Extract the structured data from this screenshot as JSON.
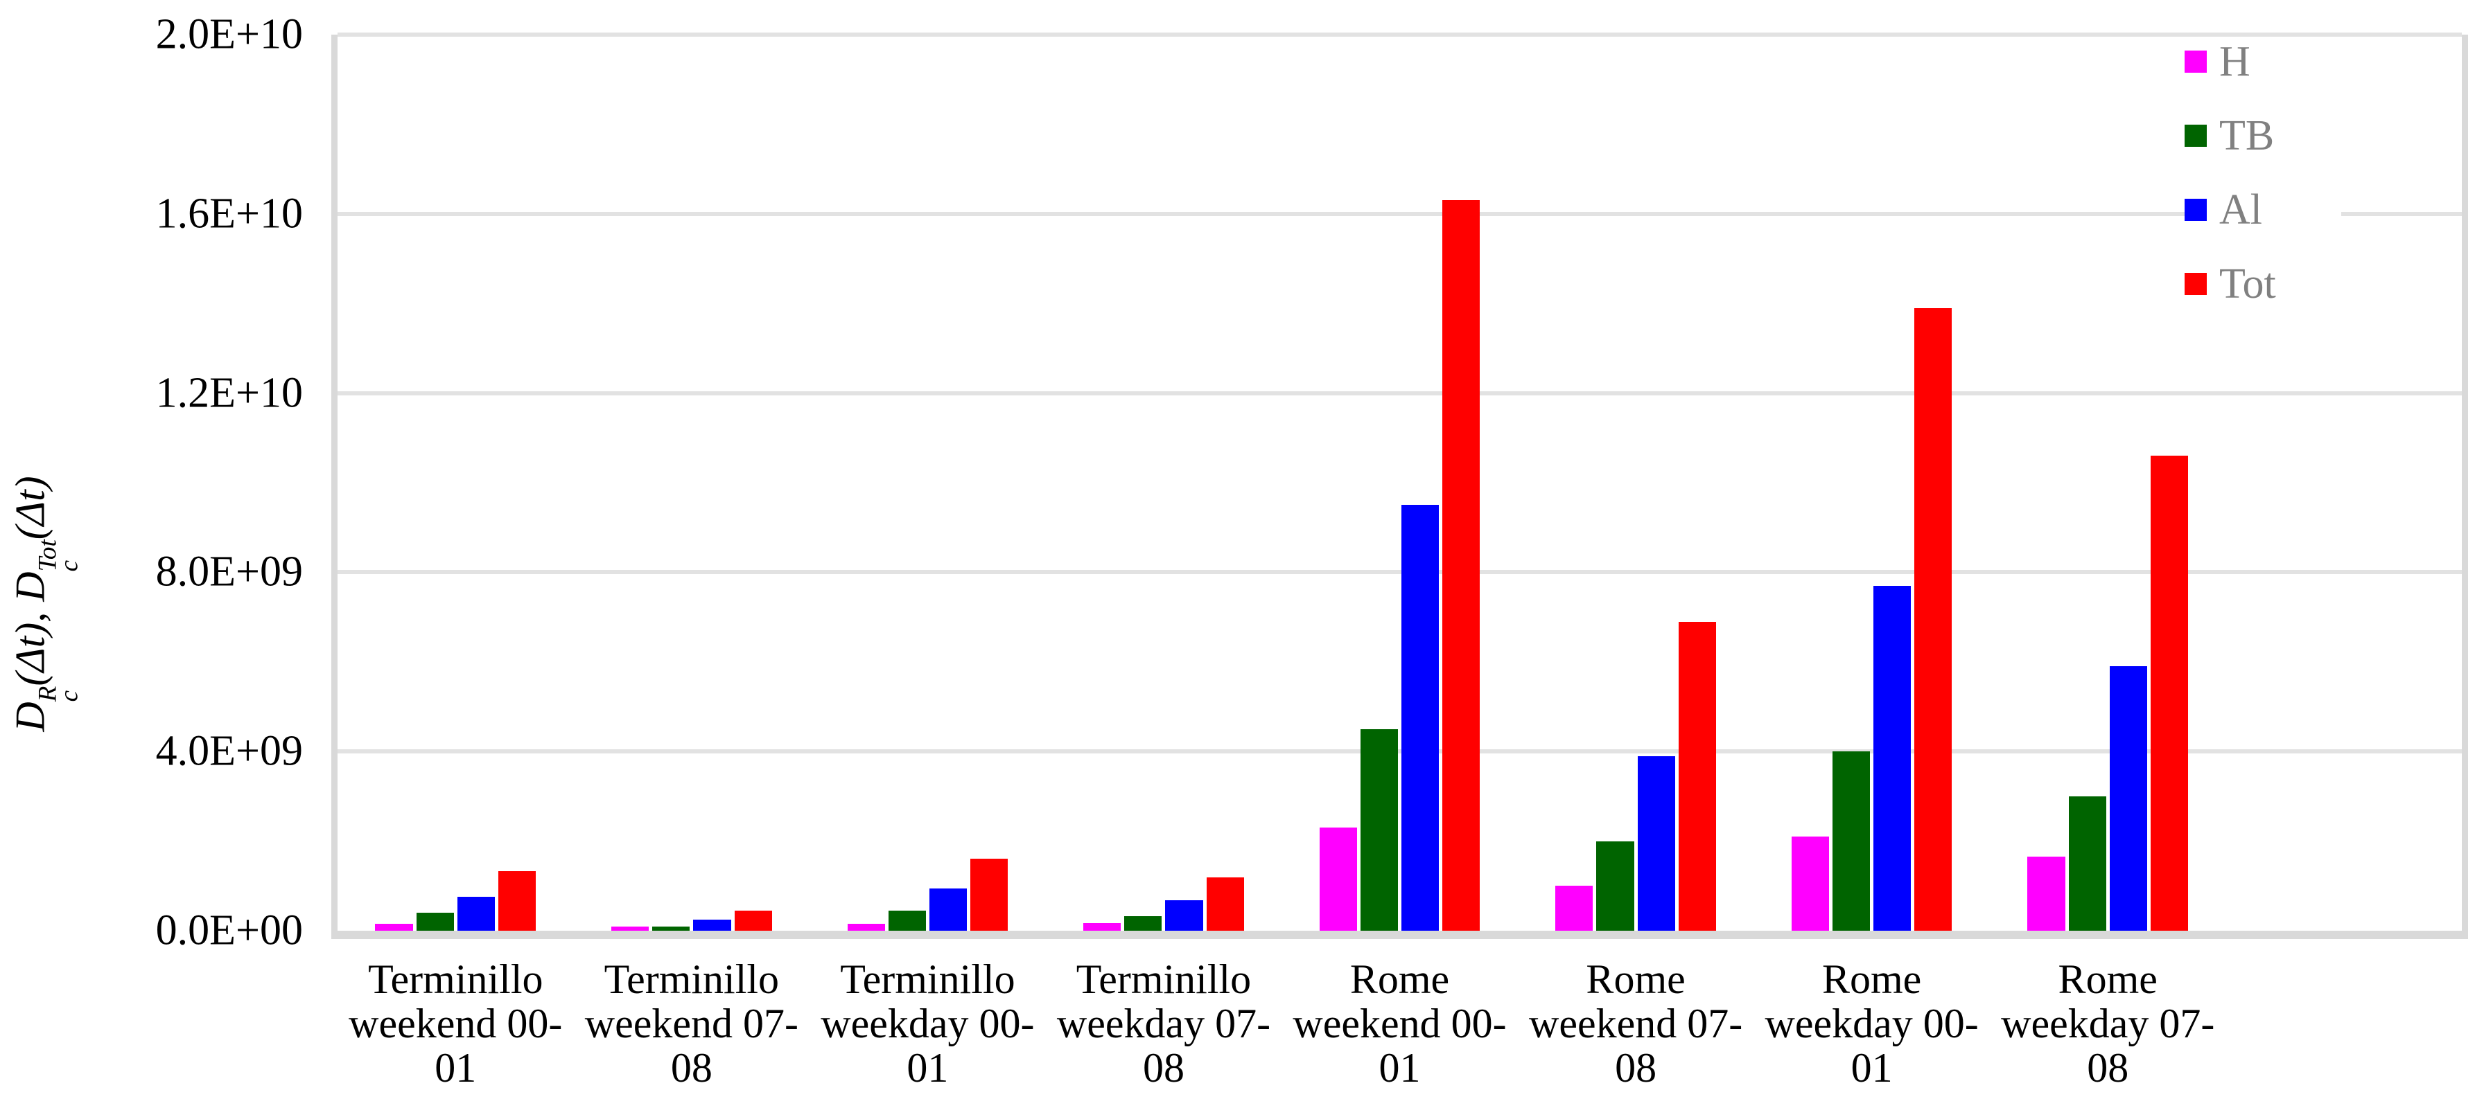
{
  "chart_data": {
    "type": "bar",
    "title": "",
    "categories": [
      "Terminillo weekend 00-01",
      "Terminillo weekend 07-08",
      "Terminillo weekday 00-01",
      "Terminillo weekday 07-08",
      "Rome weekend 00-01",
      "Rome weekend 07-08",
      "Rome weekday 00-01",
      "Rome weekday 07-08"
    ],
    "category_label_lines": [
      [
        "Terminillo",
        "weekend 00-",
        "01"
      ],
      [
        "Terminillo",
        "weekend 07-",
        "08"
      ],
      [
        "Terminillo",
        "weekday 00-",
        "01"
      ],
      [
        "Terminillo",
        "weekday 07-",
        "08"
      ],
      [
        "Rome",
        "weekend 00-",
        "01"
      ],
      [
        "Rome",
        "weekend 07-",
        "08"
      ],
      [
        "Rome",
        "weekday 00-",
        "01"
      ],
      [
        "Rome",
        "weekday 07-",
        "08"
      ]
    ],
    "series": [
      {
        "name": "H",
        "color": "#FF00FF",
        "values": [
          150000000.0,
          90000000.0,
          160000000.0,
          170000000.0,
          2300000000.0,
          1000000000.0,
          2100000000.0,
          1650000000.0
        ]
      },
      {
        "name": "TB",
        "color": "#006400",
        "values": [
          400000000.0,
          100000000.0,
          450000000.0,
          330000000.0,
          4500000000.0,
          2000000000.0,
          4000000000.0,
          3000000000.0
        ]
      },
      {
        "name": "Al",
        "color": "#0000FF",
        "values": [
          750000000.0,
          250000000.0,
          950000000.0,
          680000000.0,
          9500000000.0,
          3900000000.0,
          7700000000.0,
          5900000000.0
        ]
      },
      {
        "name": "Tot",
        "color": "#FF0000",
        "values": [
          1330000000.0,
          450000000.0,
          1600000000.0,
          1190000000.0,
          16300000000.0,
          6900000000.0,
          13900000000.0,
          10600000000.0
        ]
      }
    ],
    "ylabel": "Dc^R(Δt), Dc^Tot(Δt)",
    "ylabel_parts": [
      {
        "base": "D",
        "sub": "c",
        "sup": "R"
      },
      {
        "text": "(Δt), "
      },
      {
        "base": "D",
        "sub": "c",
        "sup": "Tot"
      },
      {
        "text": "(Δt)"
      }
    ],
    "xlabel": "",
    "y_ticks": [
      "0.0E+00",
      "4.0E+09",
      "8.0E+09",
      "1.2E+10",
      "1.6E+10",
      "2.0E+10"
    ],
    "y_tick_values": [
      0,
      4000000000.0,
      8000000000.0,
      12000000000.0,
      16000000000.0,
      20000000000.0
    ],
    "ylim": [
      0,
      20000000000.0
    ],
    "grid": true,
    "legend_position": "top-right",
    "empty_trailing_slots": 1
  },
  "style_colors": {
    "gridline": "#E2E2E2",
    "axis_line": "#D9D9D9",
    "legend_text": "#808080",
    "tick_text": "#000000"
  }
}
